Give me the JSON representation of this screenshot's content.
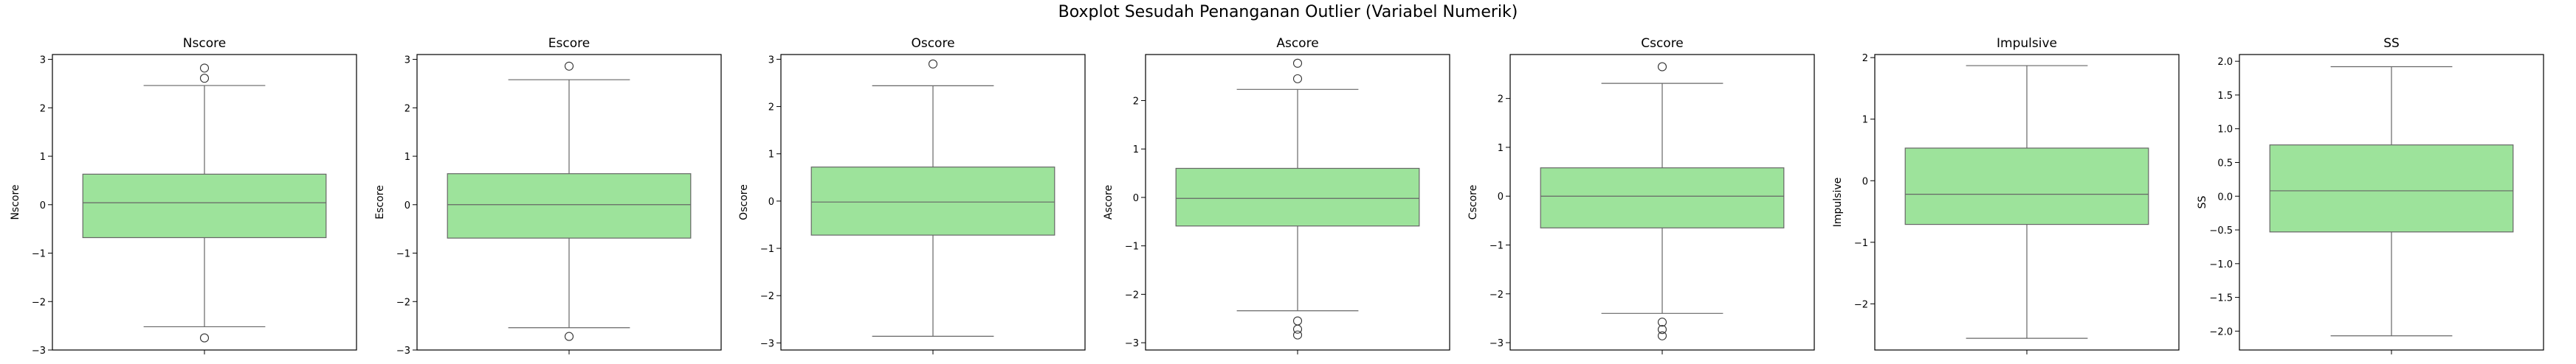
{
  "figure_title": "Boxplot Sesudah Penanganan Outlier (Variabel Numerik)",
  "colors": {
    "box_fill": "#9de39b",
    "box_edge": "#666666",
    "axes": "#000000",
    "flier": "#333333"
  },
  "chart_data": [
    {
      "type": "box",
      "title": "Nscore",
      "ylabel": "Nscore",
      "ylim": [
        -3.0,
        3.1
      ],
      "yticks": [
        -3,
        -2,
        -1,
        0,
        1,
        2,
        3
      ],
      "ytick_labels": [
        "−3",
        "−2",
        "−1",
        "0",
        "1",
        "2",
        "3"
      ],
      "q1": -0.68,
      "median": 0.04,
      "q3": 0.63,
      "whisker_low": -2.52,
      "whisker_high": 2.46,
      "outliers": [
        2.82,
        2.61,
        -2.75
      ]
    },
    {
      "type": "box",
      "title": "Escore",
      "ylabel": "Escore",
      "ylim": [
        -3.0,
        3.1
      ],
      "yticks": [
        -3,
        -2,
        -1,
        0,
        1,
        2,
        3
      ],
      "ytick_labels": [
        "−3",
        "−2",
        "−1",
        "0",
        "1",
        "2",
        "3"
      ],
      "q1": -0.69,
      "median": 0.0,
      "q3": 0.64,
      "whisker_low": -2.54,
      "whisker_high": 2.58,
      "outliers": [
        2.86,
        -2.72
      ]
    },
    {
      "type": "box",
      "title": "Oscore",
      "ylabel": "Oscore",
      "ylim": [
        -3.15,
        3.1
      ],
      "yticks": [
        -3,
        -2,
        -1,
        0,
        1,
        2,
        3
      ],
      "ytick_labels": [
        "−3",
        "−2",
        "−1",
        "0",
        "1",
        "2",
        "3"
      ],
      "q1": -0.72,
      "median": -0.02,
      "q3": 0.72,
      "whisker_low": -2.86,
      "whisker_high": 2.44,
      "outliers": [
        2.9
      ]
    },
    {
      "type": "box",
      "title": "Ascore",
      "ylabel": "Ascore",
      "ylim": [
        -3.15,
        2.95
      ],
      "yticks": [
        -3,
        -2,
        -1,
        0,
        1,
        2
      ],
      "ytick_labels": [
        "−3",
        "−2",
        "−1",
        "0",
        "1",
        "2"
      ],
      "q1": -0.59,
      "median": -0.02,
      "q3": 0.6,
      "whisker_low": -2.34,
      "whisker_high": 2.23,
      "outliers": [
        2.77,
        2.45,
        -2.55,
        -2.72,
        -2.84
      ]
    },
    {
      "type": "box",
      "title": "Cscore",
      "ylabel": "Cscore",
      "ylim": [
        -3.15,
        2.9
      ],
      "yticks": [
        -3,
        -2,
        -1,
        0,
        1,
        2
      ],
      "ytick_labels": [
        "−3",
        "−2",
        "−1",
        "0",
        "1",
        "2"
      ],
      "q1": -0.65,
      "median": 0.0,
      "q3": 0.58,
      "whisker_low": -2.4,
      "whisker_high": 2.31,
      "outliers": [
        2.65,
        -2.58,
        -2.73,
        -2.86
      ]
    },
    {
      "type": "box",
      "title": "Impulsive",
      "ylabel": "Impulsive",
      "ylim": [
        -2.75,
        2.05
      ],
      "yticks": [
        -2,
        -1,
        0,
        1,
        2
      ],
      "ytick_labels": [
        "−2",
        "−1",
        "0",
        "1",
        "2"
      ],
      "q1": -0.71,
      "median": -0.22,
      "q3": 0.53,
      "whisker_low": -2.56,
      "whisker_high": 1.87,
      "outliers": []
    },
    {
      "type": "box",
      "title": "SS",
      "ylabel": "SS",
      "ylim": [
        -2.28,
        2.1
      ],
      "yticks": [
        -2.0,
        -1.5,
        -1.0,
        -0.5,
        0.0,
        0.5,
        1.0,
        1.5,
        2.0
      ],
      "ytick_labels": [
        "−2.0",
        "−1.5",
        "−1.0",
        "−0.5",
        "0.0",
        "0.5",
        "1.0",
        "1.5",
        "2.0"
      ],
      "q1": -0.53,
      "median": 0.08,
      "q3": 0.76,
      "whisker_low": -2.07,
      "whisker_high": 1.92,
      "outliers": []
    }
  ]
}
